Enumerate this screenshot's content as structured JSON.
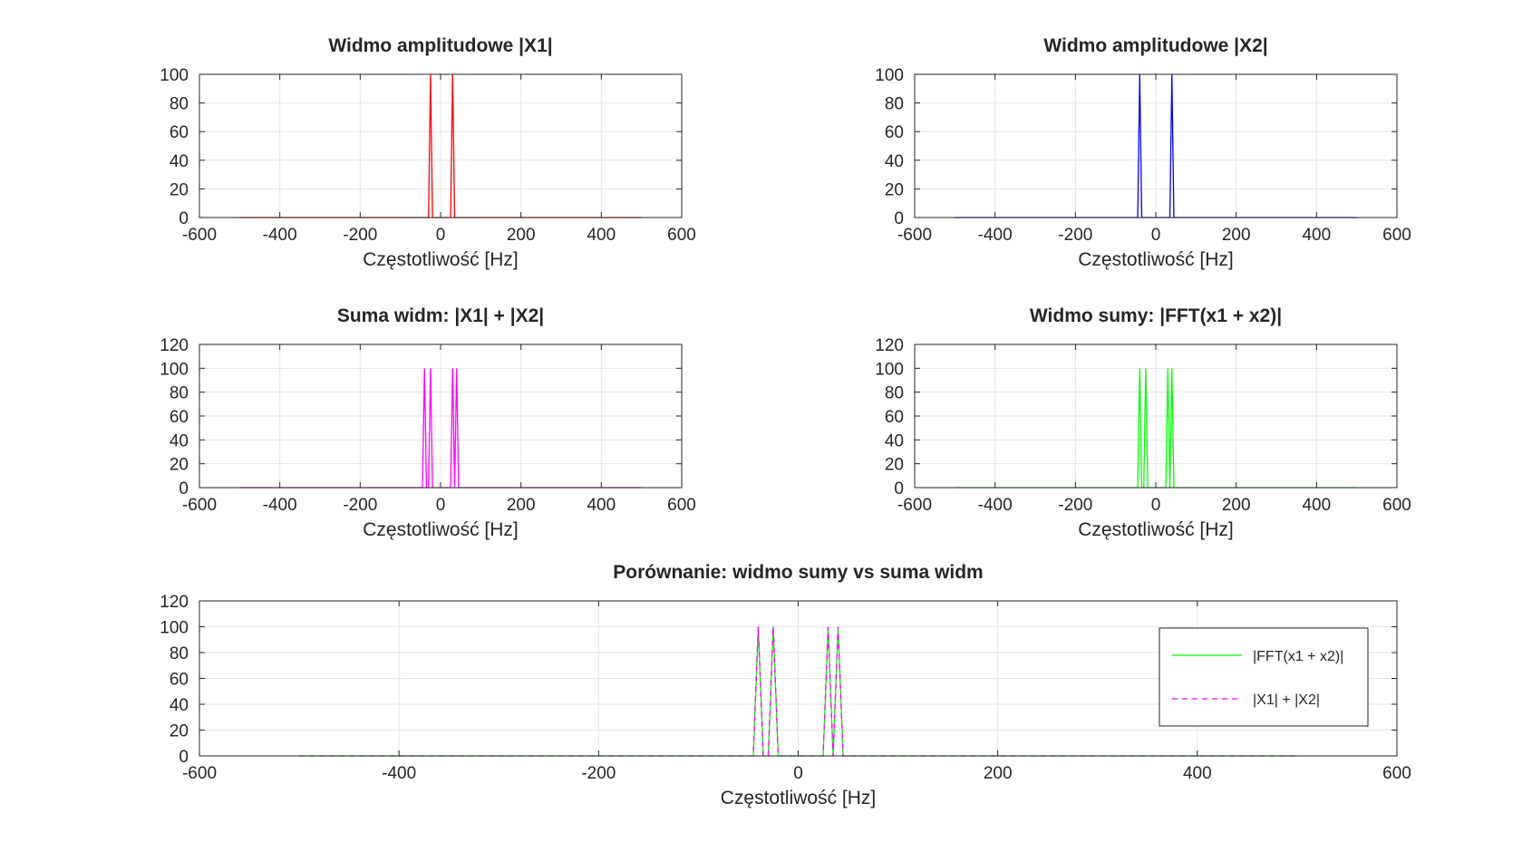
{
  "chart_data": [
    {
      "type": "line",
      "title": "Widmo amplitudowe |X1|",
      "xlabel": "Częstotliwość [Hz]",
      "ylabel": "",
      "xlim": [
        -600,
        600
      ],
      "ylim": [
        0,
        100
      ],
      "xticks": [
        -600,
        -400,
        -200,
        0,
        200,
        400,
        600
      ],
      "yticks": [
        0,
        20,
        40,
        60,
        80,
        100
      ],
      "grid": true,
      "series": [
        {
          "color": "#ff0000",
          "dash": "",
          "x": [
            -500,
            -30,
            -25,
            -20,
            25,
            30,
            35,
            500
          ],
          "y": [
            0,
            0,
            100,
            0,
            0,
            100,
            0,
            0
          ]
        }
      ]
    },
    {
      "type": "line",
      "title": "Widmo amplitudowe |X2|",
      "xlabel": "Częstotliwość [Hz]",
      "ylabel": "",
      "xlim": [
        -600,
        600
      ],
      "ylim": [
        0,
        100
      ],
      "xticks": [
        -600,
        -400,
        -200,
        0,
        200,
        400,
        600
      ],
      "yticks": [
        0,
        20,
        40,
        60,
        80,
        100
      ],
      "grid": true,
      "series": [
        {
          "color": "#0000ff",
          "dash": "",
          "x": [
            -500,
            -45,
            -40,
            -35,
            35,
            40,
            45,
            500
          ],
          "y": [
            0,
            0,
            100,
            0,
            0,
            100,
            0,
            0
          ]
        }
      ]
    },
    {
      "type": "line",
      "title": "Suma widm: |X1| + |X2|",
      "xlabel": "Częstotliwość [Hz]",
      "ylabel": "",
      "xlim": [
        -600,
        600
      ],
      "ylim": [
        0,
        120
      ],
      "xticks": [
        -600,
        -400,
        -200,
        0,
        200,
        400,
        600
      ],
      "yticks": [
        0,
        20,
        40,
        60,
        80,
        100,
        120
      ],
      "grid": true,
      "series": [
        {
          "color": "#ff00ff",
          "dash": "",
          "x": [
            -500,
            -45,
            -40,
            -35,
            -30,
            -25,
            -20,
            25,
            30,
            35,
            40,
            45,
            500
          ],
          "y": [
            0,
            0,
            100,
            0,
            0,
            100,
            0,
            0,
            100,
            0,
            100,
            0,
            0
          ]
        }
      ]
    },
    {
      "type": "line",
      "title": "Widmo sumy: |FFT(x1 + x2)|",
      "xlabel": "Częstotliwość [Hz]",
      "ylabel": "",
      "xlim": [
        -600,
        600
      ],
      "ylim": [
        0,
        120
      ],
      "xticks": [
        -600,
        -400,
        -200,
        0,
        200,
        400,
        600
      ],
      "yticks": [
        0,
        20,
        40,
        60,
        80,
        100,
        120
      ],
      "grid": true,
      "series": [
        {
          "color": "#00ff00",
          "dash": "",
          "x": [
            -500,
            -45,
            -40,
            -35,
            -30,
            -25,
            -20,
            25,
            30,
            35,
            40,
            45,
            500
          ],
          "y": [
            0,
            0,
            100,
            0,
            0,
            100,
            0,
            0,
            100,
            0,
            100,
            0,
            0
          ]
        }
      ]
    },
    {
      "type": "line",
      "title": "Porównanie: widmo sumy vs suma widm",
      "xlabel": "Częstotliwość [Hz]",
      "ylabel": "",
      "xlim": [
        -600,
        600
      ],
      "ylim": [
        0,
        120
      ],
      "xticks": [
        -600,
        -400,
        -200,
        0,
        200,
        400,
        600
      ],
      "yticks": [
        0,
        20,
        40,
        60,
        80,
        100,
        120
      ],
      "grid": true,
      "legend": "top-right",
      "series": [
        {
          "name": "|FFT(x1 + x2)|",
          "color": "#00ff00",
          "dash": "",
          "x": [
            -500,
            -45,
            -40,
            -35,
            -30,
            -25,
            -20,
            25,
            30,
            35,
            40,
            45,
            500
          ],
          "y": [
            0,
            0,
            100,
            0,
            0,
            100,
            0,
            0,
            100,
            0,
            100,
            0,
            0
          ]
        },
        {
          "name": "|X1| + |X2|",
          "color": "#ff00ff",
          "dash": "dashed",
          "x": [
            -500,
            -45,
            -40,
            -35,
            -30,
            -25,
            -20,
            25,
            30,
            35,
            40,
            45,
            500
          ],
          "y": [
            0,
            0,
            100,
            0,
            0,
            100,
            0,
            0,
            100,
            0,
            100,
            0,
            0
          ]
        }
      ]
    }
  ]
}
